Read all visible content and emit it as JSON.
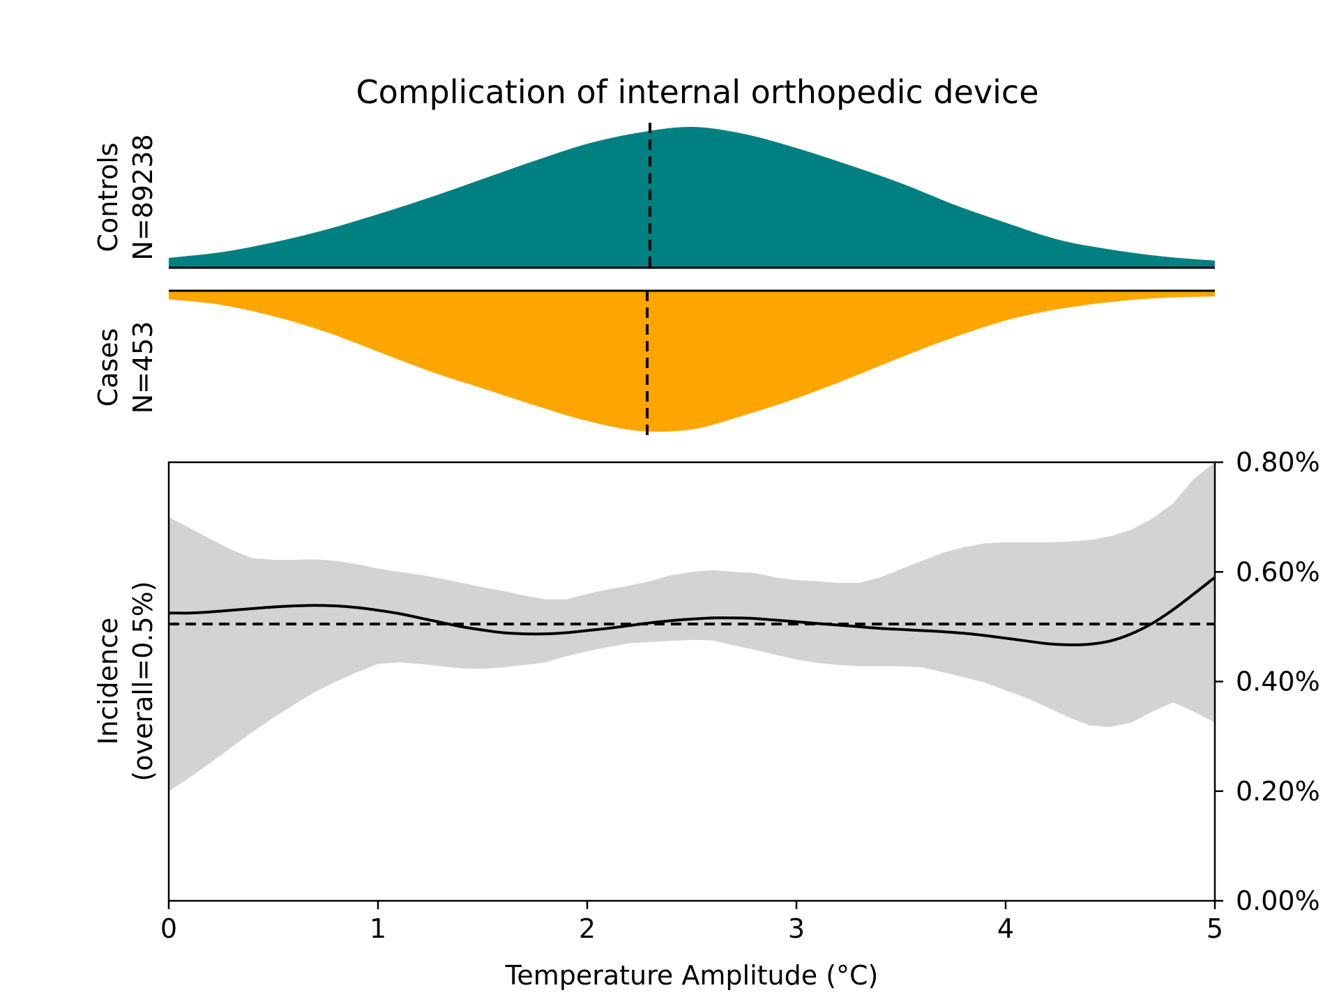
{
  "chart_data": {
    "type": "area",
    "title": "Complication of internal orthopedic device",
    "xlabel": "Temperature Amplitude (°C)",
    "xlim": [
      0,
      5
    ],
    "x_ticks": [
      "0",
      "1",
      "2",
      "3",
      "4",
      "5"
    ],
    "colors": {
      "controls": "#008080",
      "cases": "#ffa500",
      "ci_band": "#d3d3d3",
      "line": "#000000"
    },
    "controls": {
      "label": "Controls",
      "n_label": "N=89238",
      "median_x": 2.3,
      "density": {
        "x": [
          0,
          0.25,
          0.5,
          0.75,
          1,
          1.25,
          1.5,
          1.75,
          2,
          2.25,
          2.5,
          2.75,
          3,
          3.25,
          3.5,
          3.75,
          4,
          4.25,
          4.5,
          4.75,
          5
        ],
        "y": [
          0.07,
          0.11,
          0.18,
          0.27,
          0.38,
          0.5,
          0.63,
          0.76,
          0.88,
          0.96,
          1.0,
          0.95,
          0.85,
          0.73,
          0.6,
          0.45,
          0.32,
          0.2,
          0.13,
          0.08,
          0.05
        ]
      }
    },
    "cases": {
      "label": "Cases",
      "n_label": "N=453",
      "median_x": 2.3,
      "density": {
        "x": [
          0,
          0.25,
          0.5,
          0.75,
          1,
          1.25,
          1.5,
          1.75,
          2,
          2.25,
          2.5,
          2.75,
          3,
          3.25,
          3.5,
          3.75,
          4,
          4.25,
          4.5,
          4.75,
          5
        ],
        "y": [
          0.06,
          0.1,
          0.18,
          0.29,
          0.43,
          0.57,
          0.69,
          0.81,
          0.92,
          0.99,
          0.98,
          0.88,
          0.76,
          0.62,
          0.47,
          0.33,
          0.21,
          0.13,
          0.08,
          0.05,
          0.04
        ]
      }
    },
    "incidence": {
      "ylabel_line1": "Incidence",
      "ylabel_line2": "(overall=0.5%)",
      "overall": 0.505,
      "ylim": [
        0,
        0.8
      ],
      "y_ticks": [
        "0.00%",
        "0.20%",
        "0.40%",
        "0.60%",
        "0.80%"
      ],
      "x": [
        0,
        0.1,
        0.2,
        0.3,
        0.4,
        0.5,
        0.6,
        0.7,
        0.8,
        0.9,
        1.0,
        1.1,
        1.2,
        1.3,
        1.4,
        1.5,
        1.6,
        1.7,
        1.8,
        1.9,
        2.0,
        2.1,
        2.2,
        2.3,
        2.4,
        2.5,
        2.6,
        2.7,
        2.8,
        2.9,
        3.0,
        3.1,
        3.2,
        3.3,
        3.4,
        3.5,
        3.6,
        3.7,
        3.8,
        3.9,
        4.0,
        4.1,
        4.2,
        4.3,
        4.4,
        4.5,
        4.6,
        4.7,
        4.8,
        4.9,
        5.0
      ],
      "estimate": [
        0.525,
        0.525,
        0.527,
        0.53,
        0.533,
        0.536,
        0.538,
        0.539,
        0.538,
        0.535,
        0.53,
        0.524,
        0.516,
        0.508,
        0.5,
        0.494,
        0.489,
        0.487,
        0.487,
        0.489,
        0.493,
        0.497,
        0.502,
        0.507,
        0.511,
        0.514,
        0.516,
        0.516,
        0.515,
        0.512,
        0.509,
        0.506,
        0.503,
        0.5,
        0.497,
        0.495,
        0.493,
        0.491,
        0.488,
        0.484,
        0.479,
        0.474,
        0.469,
        0.467,
        0.468,
        0.474,
        0.487,
        0.506,
        0.531,
        0.56,
        0.59
      ],
      "upper": [
        0.7,
        0.68,
        0.66,
        0.64,
        0.625,
        0.622,
        0.622,
        0.623,
        0.62,
        0.614,
        0.606,
        0.6,
        0.595,
        0.588,
        0.58,
        0.572,
        0.565,
        0.557,
        0.55,
        0.55,
        0.56,
        0.568,
        0.575,
        0.583,
        0.594,
        0.6,
        0.603,
        0.6,
        0.598,
        0.59,
        0.585,
        0.583,
        0.58,
        0.58,
        0.59,
        0.605,
        0.62,
        0.635,
        0.645,
        0.652,
        0.654,
        0.654,
        0.654,
        0.655,
        0.658,
        0.665,
        0.677,
        0.697,
        0.725,
        0.77,
        0.82
      ],
      "lower": [
        0.2,
        0.225,
        0.252,
        0.28,
        0.308,
        0.334,
        0.358,
        0.381,
        0.4,
        0.417,
        0.432,
        0.435,
        0.432,
        0.428,
        0.424,
        0.423,
        0.426,
        0.43,
        0.435,
        0.446,
        0.455,
        0.463,
        0.47,
        0.472,
        0.474,
        0.476,
        0.475,
        0.466,
        0.458,
        0.449,
        0.44,
        0.434,
        0.43,
        0.428,
        0.428,
        0.428,
        0.426,
        0.417,
        0.408,
        0.398,
        0.384,
        0.37,
        0.353,
        0.335,
        0.32,
        0.317,
        0.325,
        0.345,
        0.362,
        0.345,
        0.325
      ]
    }
  }
}
